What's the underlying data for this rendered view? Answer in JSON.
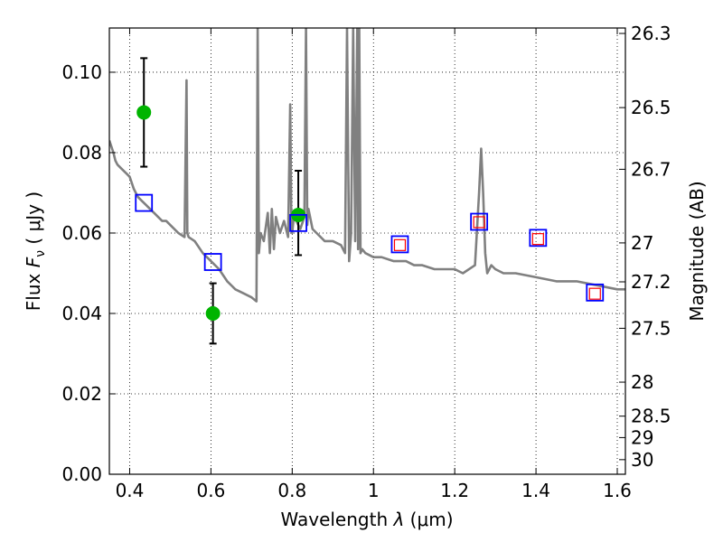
{
  "chart_data": {
    "type": "scatter",
    "xlabel": "Wavelength  λ (μm)",
    "ylabel": "Flux  Fν  ( μJy )",
    "ylabel_parts": {
      "prefix": "Flux  ",
      "symbol": "F",
      "subscript": "ν",
      "unit": "  ( μJy )"
    },
    "xlabel_parts": {
      "prefix": "Wavelength  ",
      "symbol": "λ",
      "unit": " (μm)"
    },
    "y2label": "Magnitude (AB)",
    "xlim": [
      0.35,
      1.62
    ],
    "ylim": [
      0.0,
      0.111
    ],
    "grid": true,
    "x_ticks": [
      0.4,
      0.6,
      0.8,
      1.0,
      1.2,
      1.4,
      1.6
    ],
    "x_tick_labels": [
      "0.4",
      "0.6",
      "0.8",
      "1",
      "1.2",
      "1.4",
      "1.6"
    ],
    "y_ticks": [
      0.0,
      0.02,
      0.04,
      0.06,
      0.08,
      0.1
    ],
    "y_tick_labels": [
      "0.00",
      "0.02",
      "0.04",
      "0.06",
      "0.08",
      "0.10"
    ],
    "mag_ticks": [
      {
        "label": "26.3",
        "mag": 26.3
      },
      {
        "label": "26.5",
        "mag": 26.5
      },
      {
        "label": "26.7",
        "mag": 26.7
      },
      {
        "label": "27",
        "mag": 27.0
      },
      {
        "label": "27.2",
        "mag": 27.2
      },
      {
        "label": "27.5",
        "mag": 27.5
      },
      {
        "label": "28",
        "mag": 28.0
      },
      {
        "label": "28.5",
        "mag": 28.5
      },
      {
        "label": "29",
        "mag": 29.0
      },
      {
        "label": "30",
        "mag": 30.0
      }
    ],
    "series": [
      {
        "name": "model spectrum",
        "kind": "line",
        "color": "#808080",
        "x": [
          0.35,
          0.36,
          0.365,
          0.37,
          0.38,
          0.39,
          0.4,
          0.41,
          0.42,
          0.43,
          0.44,
          0.45,
          0.46,
          0.47,
          0.48,
          0.49,
          0.5,
          0.52,
          0.535,
          0.54,
          0.542,
          0.545,
          0.56,
          0.58,
          0.6,
          0.62,
          0.64,
          0.66,
          0.68,
          0.7,
          0.712,
          0.715,
          0.718,
          0.722,
          0.73,
          0.74,
          0.745,
          0.75,
          0.755,
          0.76,
          0.77,
          0.78,
          0.79,
          0.795,
          0.798,
          0.8,
          0.805,
          0.81,
          0.82,
          0.83,
          0.834,
          0.837,
          0.84,
          0.85,
          0.86,
          0.87,
          0.88,
          0.9,
          0.92,
          0.93,
          0.935,
          0.94,
          0.945,
          0.95,
          0.955,
          0.96,
          0.962,
          0.965,
          0.968,
          0.972,
          0.98,
          1.0,
          1.02,
          1.05,
          1.08,
          1.1,
          1.12,
          1.15,
          1.18,
          1.2,
          1.22,
          1.25,
          1.26,
          1.265,
          1.27,
          1.275,
          1.28,
          1.285,
          1.29,
          1.3,
          1.32,
          1.35,
          1.4,
          1.45,
          1.5,
          1.55,
          1.6,
          1.62
        ],
        "y": [
          0.083,
          0.08,
          0.078,
          0.077,
          0.076,
          0.075,
          0.074,
          0.071,
          0.069,
          0.068,
          0.067,
          0.066,
          0.065,
          0.064,
          0.063,
          0.063,
          0.062,
          0.06,
          0.059,
          0.098,
          0.06,
          0.059,
          0.058,
          0.055,
          0.053,
          0.051,
          0.048,
          0.046,
          0.045,
          0.044,
          0.043,
          0.111,
          0.055,
          0.06,
          0.058,
          0.065,
          0.055,
          0.066,
          0.056,
          0.064,
          0.06,
          0.063,
          0.059,
          0.092,
          0.062,
          0.06,
          0.065,
          0.063,
          0.061,
          0.064,
          0.111,
          0.062,
          0.066,
          0.061,
          0.06,
          0.059,
          0.058,
          0.058,
          0.057,
          0.055,
          0.111,
          0.053,
          0.06,
          0.111,
          0.058,
          0.111,
          0.056,
          0.111,
          0.055,
          0.056,
          0.055,
          0.054,
          0.054,
          0.053,
          0.053,
          0.052,
          0.052,
          0.051,
          0.051,
          0.051,
          0.05,
          0.052,
          0.07,
          0.081,
          0.07,
          0.055,
          0.05,
          0.051,
          0.052,
          0.051,
          0.05,
          0.05,
          0.049,
          0.048,
          0.048,
          0.047,
          0.046,
          0.046
        ]
      },
      {
        "name": "observed photometry",
        "kind": "points",
        "color": "#00b400",
        "x": [
          0.435,
          0.605,
          0.815
        ],
        "y": [
          0.09,
          0.04,
          0.0645
        ],
        "err_low": [
          0.0765,
          0.0325,
          0.0545
        ],
        "err_high": [
          0.1035,
          0.0475,
          0.0755
        ]
      },
      {
        "name": "model bandpass (blue)",
        "kind": "squares",
        "color": "#0000ff",
        "x": [
          0.435,
          0.605,
          0.815,
          1.065,
          1.26,
          1.405,
          1.545
        ],
        "y": [
          0.0675,
          0.0528,
          0.0625,
          0.0572,
          0.0628,
          0.0588,
          0.0452
        ]
      },
      {
        "name": "model bandpass (red)",
        "kind": "squares",
        "color": "#ff0000",
        "x": [
          1.065,
          1.26,
          1.405,
          1.545
        ],
        "y": [
          0.057,
          0.0627,
          0.0585,
          0.0449
        ]
      }
    ]
  }
}
